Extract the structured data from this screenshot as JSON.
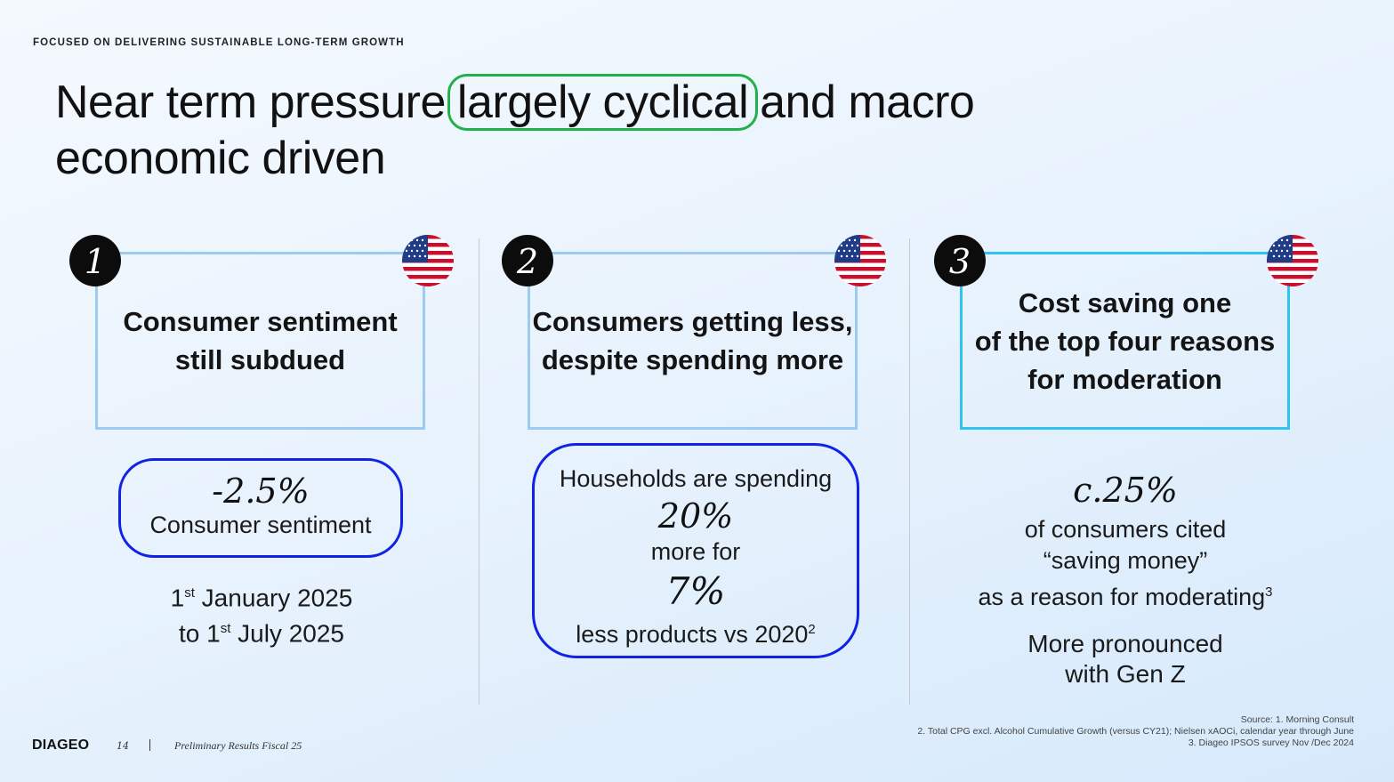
{
  "header": {
    "eyebrow": "FOCUSED ON DELIVERING SUSTAINABLE LONG-TERM GROWTH",
    "title_part1": "Near term pressure",
    "title_highlight": "largely cyclical",
    "title_part2": "and macro",
    "title_line2": "economic driven"
  },
  "colors": {
    "highlight_green": "#22b04a",
    "stat_box_blue": "#1022e6",
    "card_border_light_blue": "#9dcaf0",
    "card_border_cyan": "#2fc2f2"
  },
  "panels": [
    {
      "number": "1",
      "flag_icon": "us-flag-icon",
      "heading_line1": "Consumer sentiment",
      "heading_line2": "still subdued",
      "stat": "-2.5%",
      "stat_label": "Consumer sentiment",
      "date_line1_a": "1",
      "date_line1_sup": "st",
      "date_line1_b": " January 2025",
      "date_line2_a": "to 1",
      "date_line2_sup": "st",
      "date_line2_b": " July 2025"
    },
    {
      "number": "2",
      "flag_icon": "us-flag-icon",
      "heading_line1": "Consumers getting less,",
      "heading_line2": "despite spending more",
      "intro": "Households are spending",
      "stat1": "20%",
      "stat1_label": "more for",
      "stat2": "7%",
      "stat2_label": "less products  vs 2020",
      "stat2_sup": "2"
    },
    {
      "number": "3",
      "flag_icon": "us-flag-icon",
      "heading_line1": "Cost saving one",
      "heading_line2": "of the top four reasons",
      "heading_line3": "for moderation",
      "stat": "c.25%",
      "line1": "of consumers cited",
      "line2": "“saving money”",
      "line3": "as a reason for moderating",
      "line3_sup": "3",
      "note_line1": "More pronounced",
      "note_line2": "with Gen Z"
    }
  ],
  "footer": {
    "logo": "DIAGEO",
    "page_number": "14",
    "document": "Preliminary Results Fiscal 25",
    "sources": [
      "Source: 1. Morning Consult",
      "2. Total CPG excl. Alcohol Cumulative Growth (versus CY21); Nielsen xAOCi, calendar year through June",
      "3. Diageo IPSOS survey Nov /Dec 2024"
    ]
  }
}
